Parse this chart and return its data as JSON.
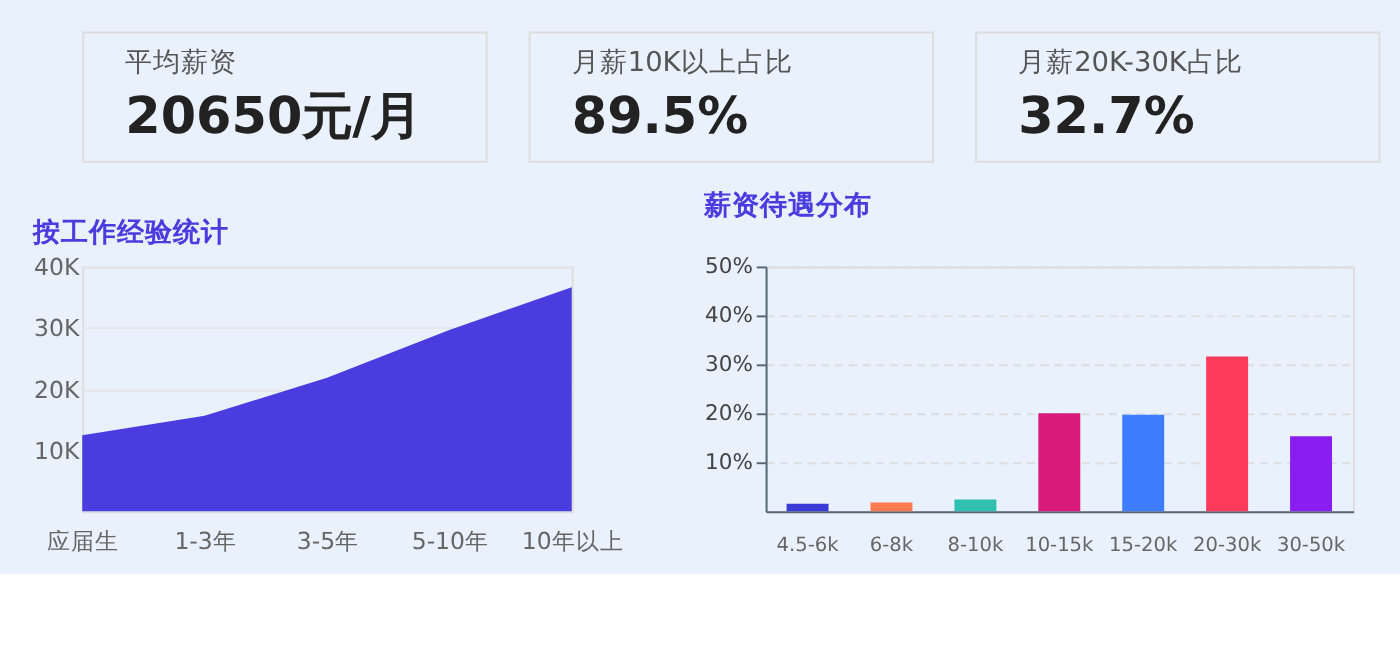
{
  "chart_data": [
    {
      "type": "other",
      "title": "平均薪资",
      "annotations": [
        "20650元/月"
      ]
    },
    {
      "type": "other",
      "title": "月薪10K以上占比",
      "annotations": [
        "89.5%"
      ]
    },
    {
      "type": "other",
      "title": "月薪20K-30K占比",
      "annotations": [
        "32.7%"
      ]
    },
    {
      "type": "area",
      "title": "按工作经验统计",
      "categories": [
        "应届生",
        "1-3年",
        "3-5年",
        "5-10年",
        "10年以上"
      ],
      "values": [
        12400,
        15600,
        21800,
        29600,
        36600
      ],
      "color": "#4a3de0",
      "ylim": [
        0,
        40000
      ],
      "yticks": [
        {
          "value": 10000,
          "label": "10K"
        },
        {
          "value": 20000,
          "label": "20K"
        },
        {
          "value": 30000,
          "label": "30K"
        },
        {
          "value": 40000,
          "label": "40K"
        }
      ],
      "grid": "y"
    },
    {
      "type": "bar",
      "title": "薪资待遇分布",
      "categories": [
        "4.5-6k",
        "6-8k",
        "8-10k",
        "10-15k",
        "15-20k",
        "20-30k",
        "30-50k"
      ],
      "values": [
        1.5,
        1.8,
        2.4,
        20.0,
        19.7,
        31.6,
        15.3
      ],
      "colors": [
        "#3a3ad6",
        "#ff7a50",
        "#30c0b0",
        "#d81b7a",
        "#3d7cff",
        "#ff3a5a",
        "#8a1ef0"
      ],
      "ylim": [
        0,
        50
      ],
      "yticks": [
        {
          "value": 10,
          "label": "10%"
        },
        {
          "value": 20,
          "label": "20%"
        },
        {
          "value": 30,
          "label": "30%"
        },
        {
          "value": 40,
          "label": "40%"
        },
        {
          "value": 50,
          "label": "50%"
        }
      ],
      "grid": "y"
    }
  ]
}
